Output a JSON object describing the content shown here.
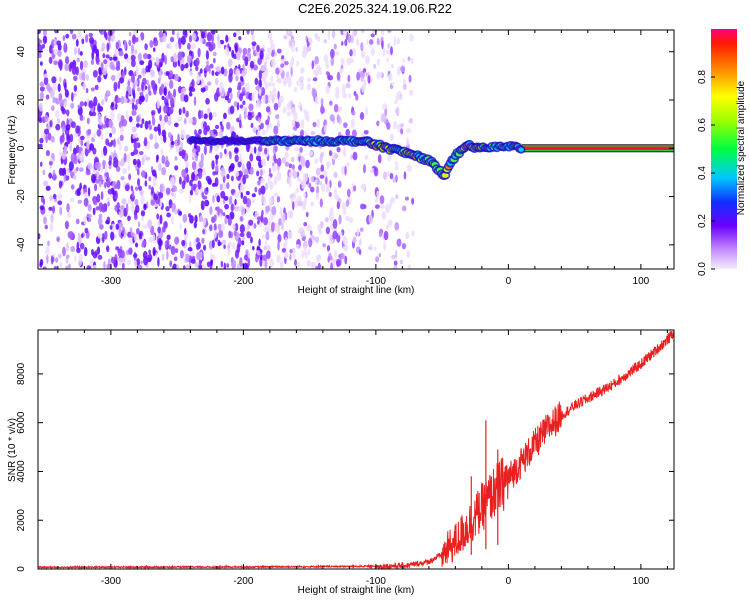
{
  "title": "C2E6.2025.324.19.06.R22",
  "chart_data": [
    {
      "type": "heatmap",
      "xlabel": "Height of straight line (km)",
      "ylabel": "Frequency (Hz)",
      "xlim": [
        -355,
        125
      ],
      "ylim": [
        -50,
        49
      ],
      "xticks": [
        -300,
        -200,
        -100,
        0,
        100
      ],
      "xtick_labels": [
        "-300",
        "-200",
        "-100",
        "0",
        "100"
      ],
      "yticks": [
        -40,
        -20,
        0,
        20,
        40
      ],
      "ytick_labels": [
        "-40",
        "-20",
        "0",
        "20",
        "40"
      ],
      "colorbar": {
        "label": "Normalized spectral amplitude",
        "range": [
          0,
          1
        ],
        "ticks": [
          0.0,
          0.2,
          0.4,
          0.6,
          0.8
        ],
        "tick_labels": [
          "0.0",
          "0.2",
          "0.4",
          "0.6",
          "0.8"
        ]
      },
      "noise_region_x": [
        -355,
        -72
      ],
      "ridge": {
        "x": [
          -240,
          -180,
          -150,
          -110,
          -90,
          -70,
          -60,
          -48,
          -40,
          -30,
          -20,
          0,
          10,
          125
        ],
        "freq": [
          3,
          3,
          3,
          3,
          0,
          -3,
          -5,
          -11,
          -3,
          1,
          0,
          1,
          0,
          0
        ]
      }
    },
    {
      "type": "line",
      "xlabel": "Height of straight line (km)",
      "ylabel": "SNR (10 * v/v)",
      "xlim": [
        -355,
        125
      ],
      "ylim": [
        0,
        9800
      ],
      "xticks": [
        -300,
        -200,
        -100,
        0,
        100
      ],
      "xtick_labels": [
        "-300",
        "-200",
        "-100",
        "0",
        "100"
      ],
      "yticks": [
        0,
        2000,
        4000,
        6000,
        8000
      ],
      "ytick_labels": [
        "0",
        "2000",
        "4000",
        "6000",
        "8000"
      ],
      "series": [
        {
          "name": "SNR",
          "color": "#e82020",
          "x": [
            -355,
            -200,
            -100,
            -75,
            -60,
            -50,
            -40,
            -30,
            -20,
            -10,
            0,
            10,
            20,
            30,
            40,
            50,
            60,
            70,
            80,
            90,
            100,
            110,
            120,
            125
          ],
          "y": [
            60,
            70,
            100,
            150,
            300,
            600,
            1100,
            1800,
            2500,
            3200,
            3700,
            4400,
            5100,
            5800,
            6300,
            6700,
            7000,
            7300,
            7600,
            8000,
            8400,
            8900,
            9400,
            9700
          ],
          "spikes": [
            {
              "x": -17,
              "y": 6100
            },
            {
              "x": -28,
              "y": 3800
            },
            {
              "x": -8,
              "y": 4900
            }
          ]
        }
      ]
    }
  ]
}
